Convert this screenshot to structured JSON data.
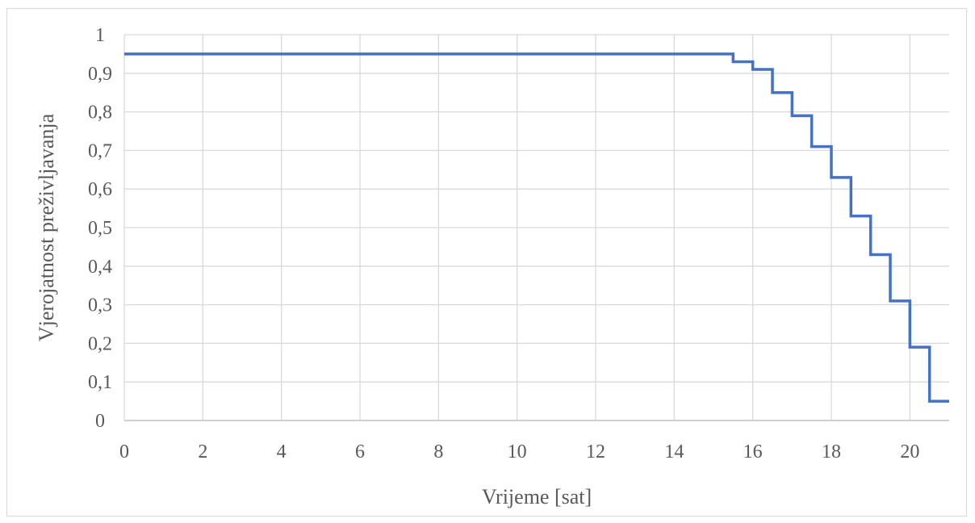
{
  "chart_data": {
    "type": "line",
    "title": "",
    "xlabel": "Vrijeme [sat]",
    "ylabel": "Vjerojatnost preživljavanja",
    "xlim": [
      0,
      21
    ],
    "ylim": [
      0,
      1
    ],
    "x_ticks": [
      "0",
      "2",
      "4",
      "6",
      "8",
      "10",
      "12",
      "14",
      "16",
      "18",
      "20"
    ],
    "y_ticks": [
      "0",
      "0,1",
      "0,2",
      "0,3",
      "0,4",
      "0,5",
      "0,6",
      "0,7",
      "0,8",
      "0,9",
      "1"
    ],
    "grid": true,
    "legend": "none",
    "line_color": "#4472c4",
    "step": true,
    "series": [
      {
        "x": [
          0,
          15.5,
          16,
          16.5,
          17,
          17.5,
          18,
          18.5,
          19,
          19.5,
          20,
          20.5,
          21
        ],
        "values": [
          0.95,
          0.93,
          0.91,
          0.85,
          0.79,
          0.71,
          0.63,
          0.53,
          0.43,
          0.31,
          0.19,
          0.05,
          0.05
        ]
      }
    ]
  }
}
